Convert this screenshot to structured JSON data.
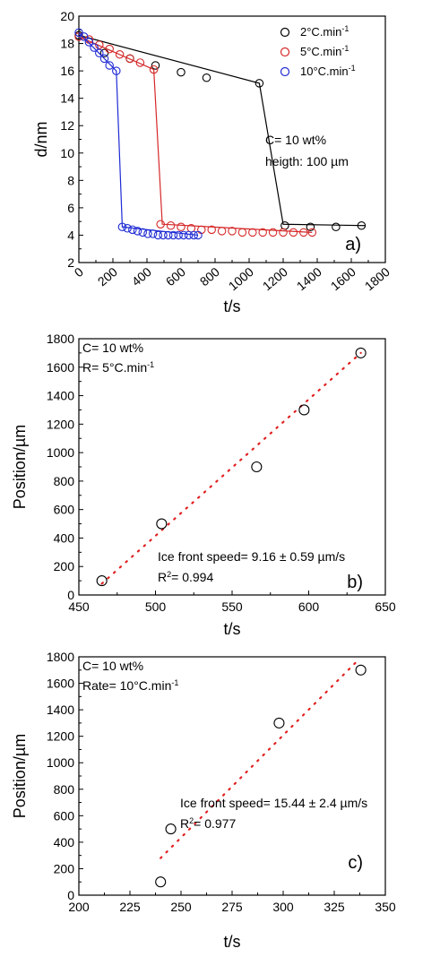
{
  "chart_data": [
    {
      "type": "line",
      "panel_label": "a)",
      "xlabel": "t/s",
      "ylabel": "d/nm",
      "xlim": [
        0,
        1800
      ],
      "ylim": [
        2,
        20
      ],
      "xticks": [
        0,
        200,
        400,
        600,
        800,
        1000,
        1200,
        1400,
        1600,
        1800
      ],
      "yticks": [
        2,
        4,
        6,
        8,
        10,
        12,
        14,
        16,
        18,
        20
      ],
      "x_tick_rotation": "rotated",
      "grid": false,
      "legend_position": "top-right",
      "annotations": [
        "C= 10 wt%",
        "heigth: 100 µm"
      ],
      "series": [
        {
          "name": "2°C.min",
          "name_sup": "-1",
          "color": "#000000",
          "marker": "open-circle",
          "line_x": [
            0,
            1060,
            1200,
            1680
          ],
          "line_y": [
            18.6,
            15.1,
            4.8,
            4.7
          ],
          "points": [
            [
              0,
              18.6
            ],
            [
              150,
              17.3
            ],
            [
              300,
              16.9
            ],
            [
              450,
              16.4
            ],
            [
              600,
              15.9
            ],
            [
              750,
              15.5
            ],
            [
              1060,
              15.1
            ],
            [
              1210,
              4.7
            ],
            [
              1360,
              4.6
            ],
            [
              1510,
              4.6
            ],
            [
              1660,
              4.7
            ]
          ]
        },
        {
          "name": "5°C.min",
          "name_sup": "-1",
          "color": "#d62828",
          "marker": "open-circle",
          "line_x": [
            0,
            440,
            490,
            1370
          ],
          "line_y": [
            18.5,
            16.1,
            4.8,
            4.2
          ],
          "points": [
            [
              0,
              18.5
            ],
            [
              60,
              18.3
            ],
            [
              120,
              17.9
            ],
            [
              180,
              17.6
            ],
            [
              240,
              17.2
            ],
            [
              300,
              16.9
            ],
            [
              360,
              16.6
            ],
            [
              440,
              16.1
            ],
            [
              480,
              4.8
            ],
            [
              540,
              4.7
            ],
            [
              600,
              4.6
            ],
            [
              660,
              4.5
            ],
            [
              720,
              4.4
            ],
            [
              780,
              4.4
            ],
            [
              840,
              4.3
            ],
            [
              900,
              4.3
            ],
            [
              960,
              4.2
            ],
            [
              1020,
              4.2
            ],
            [
              1080,
              4.2
            ],
            [
              1140,
              4.2
            ],
            [
              1200,
              4.2
            ],
            [
              1260,
              4.2
            ],
            [
              1320,
              4.2
            ],
            [
              1370,
              4.2
            ]
          ]
        },
        {
          "name": "10°C.min",
          "name_sup": "-1",
          "color": "#1f2bd4",
          "marker": "open-circle",
          "line_x": [
            0,
            220,
            255,
            700
          ],
          "line_y": [
            18.8,
            16.0,
            4.6,
            4.0
          ],
          "points": [
            [
              0,
              18.8
            ],
            [
              30,
              18.5
            ],
            [
              60,
              18.1
            ],
            [
              90,
              17.7
            ],
            [
              120,
              17.3
            ],
            [
              150,
              16.9
            ],
            [
              180,
              16.4
            ],
            [
              220,
              16.0
            ],
            [
              255,
              4.6
            ],
            [
              285,
              4.5
            ],
            [
              315,
              4.4
            ],
            [
              345,
              4.3
            ],
            [
              375,
              4.2
            ],
            [
              405,
              4.1
            ],
            [
              435,
              4.1
            ],
            [
              465,
              4.0
            ],
            [
              495,
              4.0
            ],
            [
              525,
              4.0
            ],
            [
              555,
              4.0
            ],
            [
              585,
              4.0
            ],
            [
              615,
              4.0
            ],
            [
              645,
              4.0
            ],
            [
              675,
              4.0
            ],
            [
              700,
              4.0
            ]
          ]
        }
      ]
    },
    {
      "type": "scatter",
      "panel_label": "b)",
      "xlabel": "t/s",
      "ylabel": "Position/µm",
      "xlim": [
        450,
        650
      ],
      "ylim": [
        0,
        1800
      ],
      "xticks": [
        450,
        500,
        550,
        600,
        650
      ],
      "yticks": [
        0,
        200,
        400,
        600,
        800,
        1000,
        1200,
        1400,
        1600,
        1800
      ],
      "grid": false,
      "annotations_top": [
        "C= 10 wt%",
        "R= 5°C.min"
      ],
      "annotations_top_sup": [
        "",
        "-1"
      ],
      "fit_text": "Ice front speed= 9.16 ± 0.59 µm/s",
      "r2_prefix": "R",
      "r2_sup": "2",
      "r2_value": "= 0.994",
      "points_x": [
        465,
        504,
        566,
        597,
        634
      ],
      "points_y": [
        100,
        500,
        900,
        1300,
        1700
      ],
      "fit_line": {
        "x": [
          465,
          634
        ],
        "y": [
          80,
          1700
        ],
        "color": "#e02020",
        "style": "dotted"
      }
    },
    {
      "type": "scatter",
      "panel_label": "c)",
      "xlabel": "t/s",
      "ylabel": "Position/µm",
      "xlim": [
        200,
        350
      ],
      "ylim": [
        0,
        1800
      ],
      "xticks": [
        200,
        225,
        250,
        275,
        300,
        325,
        350
      ],
      "yticks": [
        0,
        200,
        400,
        600,
        800,
        1000,
        1200,
        1400,
        1600,
        1800
      ],
      "grid": false,
      "annotations_top": [
        "C= 10 wt%",
        "Rate= 10°C.min"
      ],
      "annotations_top_sup": [
        "",
        "-1"
      ],
      "fit_text": "Ice front speed= 15.44 ± 2.4 µm/s",
      "r2_prefix": "R",
      "r2_sup": "2",
      "r2_value": "= 0.977",
      "points_x": [
        240,
        245,
        298,
        338
      ],
      "points_y": [
        100,
        500,
        1300,
        1700
      ],
      "fit_line": {
        "x": [
          240,
          337
        ],
        "y": [
          280,
          1780
        ],
        "color": "#e02020",
        "style": "dotted"
      }
    }
  ]
}
